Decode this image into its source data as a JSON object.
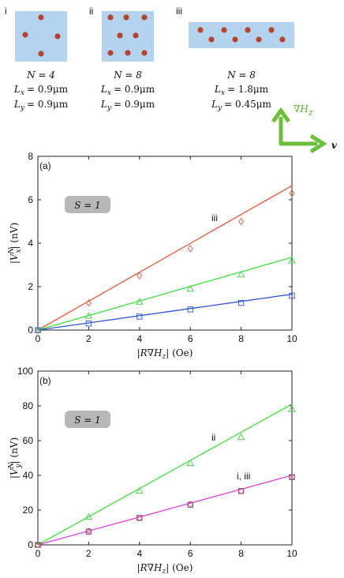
{
  "panels": [
    {
      "label": "i",
      "N": "N = 4",
      "Lx": "= 0.9μm",
      "Ly": "= 0.9μm"
    },
    {
      "label": "ii",
      "N": "N = 8",
      "Lx": "= 0.9μm",
      "Ly": "= 0.9μm"
    },
    {
      "label": "iii",
      "N": "N = 8",
      "Lx": "= 1.8μm",
      "Ly": "= 0.45μm"
    }
  ],
  "arrows": {
    "gradient": [
      "∇H",
      "z"
    ],
    "velocity": "v"
  },
  "chart_data": [
    {
      "type": "scatter",
      "panel_label": "(a)",
      "box": "S = 1",
      "xlabel": [
        "|R∇H",
        "z",
        "| (Oe)"
      ],
      "ylabel": [
        "|V",
        "N",
        "x",
        "| (nV)"
      ],
      "annotations": [
        "iii"
      ],
      "xlim": [
        0,
        10
      ],
      "xticks": [
        0,
        2,
        4,
        6,
        8,
        10
      ],
      "ylim": [
        0,
        8
      ],
      "yticks": [
        0,
        2,
        4,
        6,
        8
      ],
      "x": [
        0,
        2,
        4,
        6,
        8,
        10
      ],
      "series": [
        {
          "marker": "diamond",
          "color": "#d9655a",
          "values": [
            0,
            1.25,
            2.5,
            3.75,
            5.0,
            6.3
          ]
        },
        {
          "marker": "triangle",
          "color": "#4fd14f",
          "values": [
            0,
            0.65,
            1.3,
            1.9,
            2.55,
            3.2
          ]
        },
        {
          "marker": "square",
          "color": "#3b5fd8",
          "values": [
            0,
            0.3,
            0.62,
            0.95,
            1.25,
            1.58
          ]
        }
      ],
      "fits": [
        {
          "color": "#e4573a",
          "values": [
            0,
            6.65
          ]
        },
        {
          "color": "#3ee03e",
          "values": [
            0,
            3.35
          ]
        },
        {
          "color": "#2d4fd6",
          "values": [
            0,
            1.65
          ]
        }
      ]
    },
    {
      "type": "scatter",
      "panel_label": "(b)",
      "box": "S = 1",
      "xlabel": [
        "|R∇H",
        "z",
        "| (Oe)"
      ],
      "ylabel": [
        "|V",
        "N",
        "y",
        "| (nV)"
      ],
      "annotations": [
        "ii",
        "i,  iii"
      ],
      "xlim": [
        0,
        10
      ],
      "xticks": [
        0,
        2,
        4,
        6,
        8,
        10
      ],
      "ylim": [
        0,
        100
      ],
      "yticks": [
        0,
        20,
        40,
        60,
        80,
        100
      ],
      "x": [
        0,
        2,
        4,
        6,
        8,
        10
      ],
      "series": [
        {
          "marker": "triangle",
          "color": "#4fd14f",
          "values": [
            0,
            16,
            31,
            47,
            62,
            78
          ]
        },
        {
          "marker": "square",
          "color": "#7a4fa0",
          "values": [
            0,
            7.5,
            15.5,
            23,
            31,
            39
          ]
        },
        {
          "marker": "circle",
          "color": "#c0504d",
          "values": [
            0,
            8,
            15.5,
            23.5,
            31,
            39
          ]
        }
      ],
      "fits": [
        {
          "color": "#3ee03e",
          "values": [
            0,
            81
          ]
        },
        {
          "color": "#e040e0",
          "values": [
            0,
            40
          ]
        }
      ]
    }
  ]
}
